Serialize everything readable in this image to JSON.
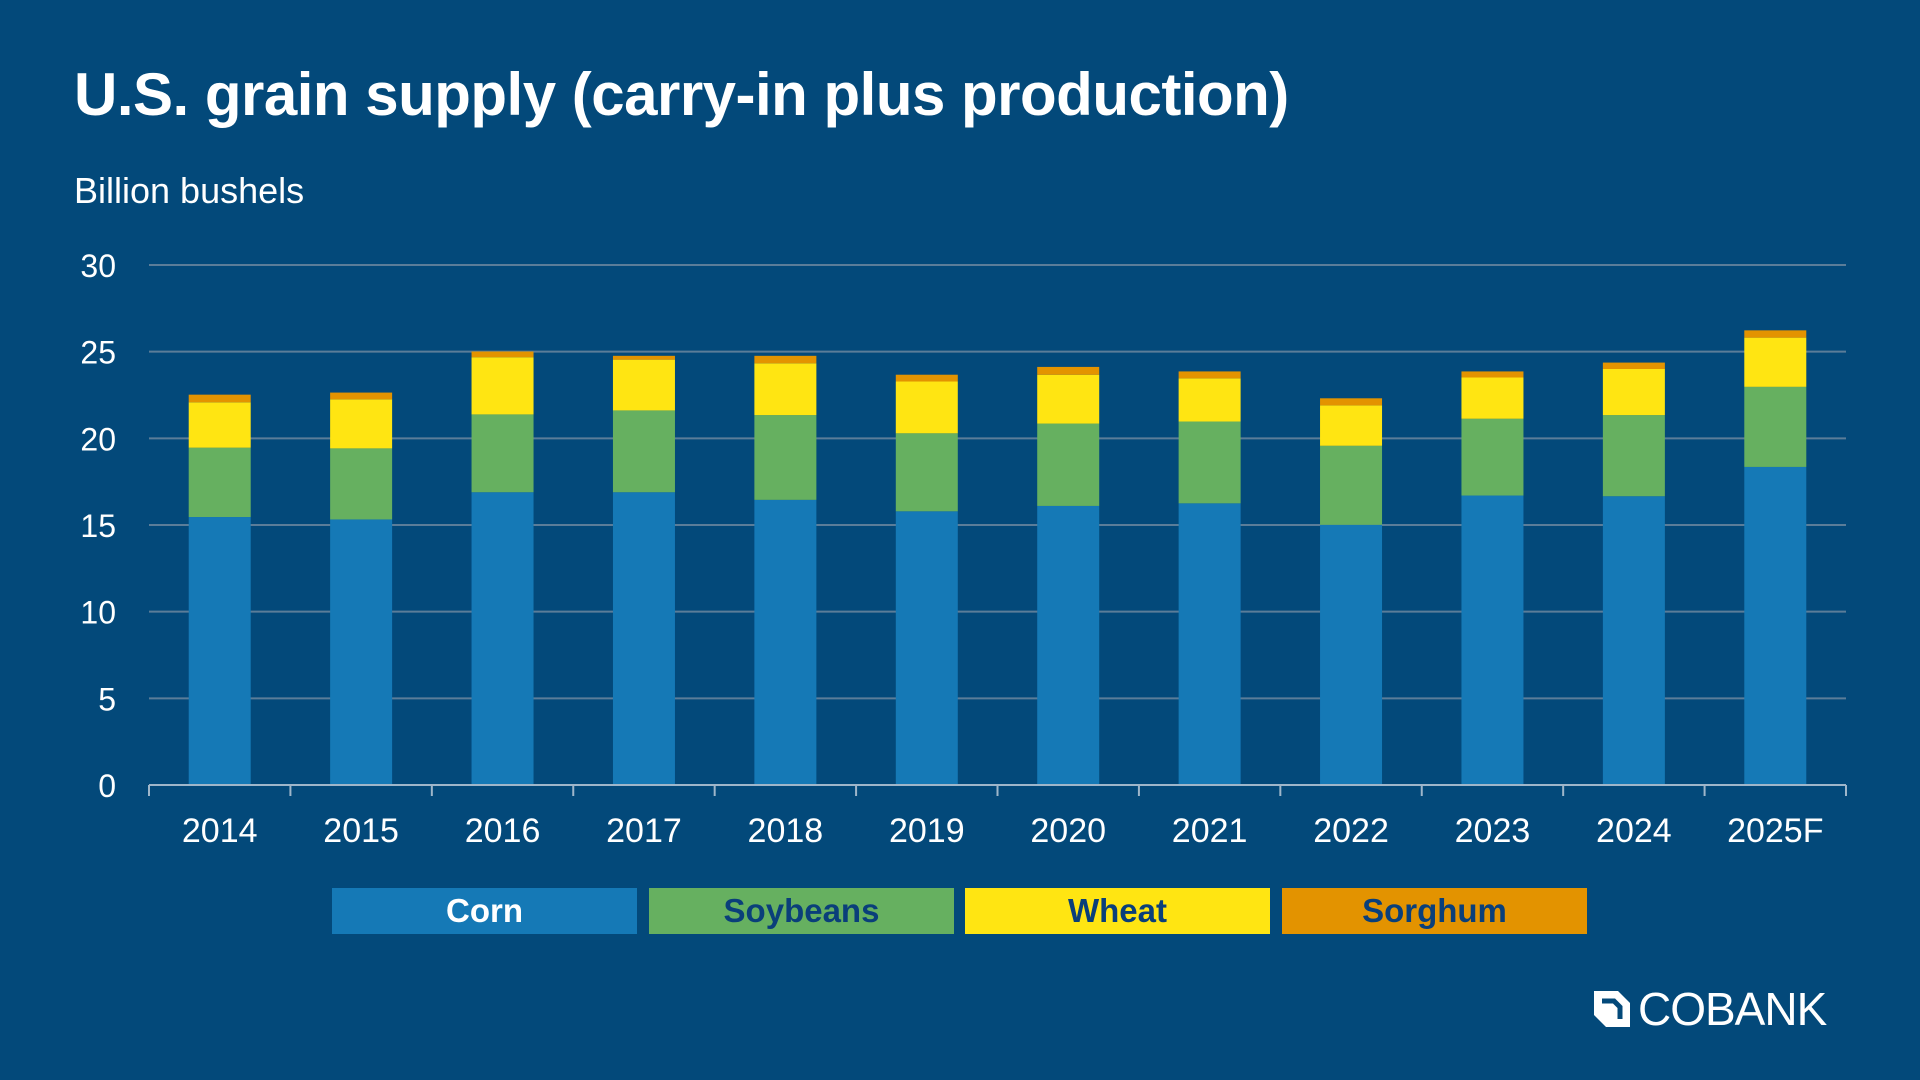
{
  "title": "U.S. grain supply (carry-in plus production)",
  "subtitle": "Billion bushels",
  "logo": "COBANK",
  "chart_data": {
    "type": "bar",
    "stacked": true,
    "title": "U.S. grain supply (carry-in plus production)",
    "ylabel": "Billion bushels",
    "ylim": [
      0,
      30
    ],
    "yticks": [
      0,
      5,
      10,
      15,
      20,
      25,
      30
    ],
    "grid": true,
    "legend": "bottom",
    "categories": [
      "2014",
      "2015",
      "2016",
      "2017",
      "2018",
      "2019",
      "2020",
      "2021",
      "2022",
      "2023",
      "2024",
      "2025F"
    ],
    "series": [
      {
        "name": "Corn",
        "color": "#1579b6",
        "text_color": "#ffffff",
        "values": [
          15.46,
          15.32,
          16.89,
          16.89,
          16.45,
          15.79,
          16.1,
          16.25,
          15.01,
          16.7,
          16.66,
          18.35
        ]
      },
      {
        "name": "Soybeans",
        "color": "#66b060",
        "text_color": "#0a3f7a",
        "values": [
          4.0,
          4.1,
          4.49,
          4.72,
          4.89,
          4.5,
          4.75,
          4.72,
          4.56,
          4.43,
          4.68,
          4.62
        ]
      },
      {
        "name": "Wheat",
        "color": "#ffe512",
        "text_color": "#0a3f7a",
        "values": [
          2.62,
          2.83,
          3.3,
          2.93,
          2.99,
          2.99,
          2.82,
          2.49,
          2.33,
          2.38,
          2.66,
          2.84
        ]
      },
      {
        "name": "Sorghum",
        "color": "#e39300",
        "text_color": "#0a3f7a",
        "values": [
          0.44,
          0.39,
          0.33,
          0.22,
          0.43,
          0.39,
          0.45,
          0.4,
          0.41,
          0.35,
          0.37,
          0.42
        ]
      }
    ]
  }
}
